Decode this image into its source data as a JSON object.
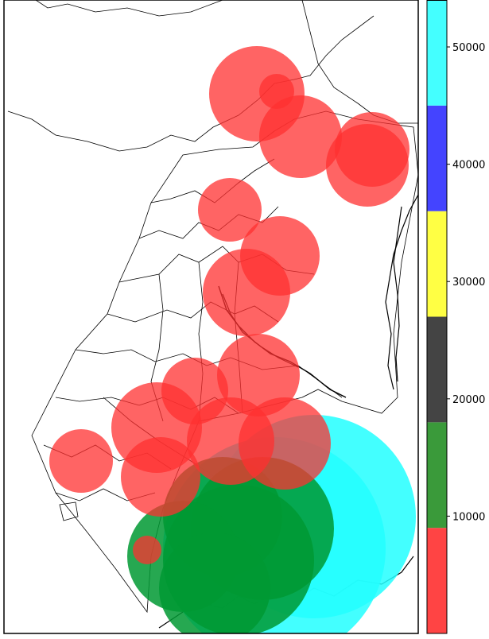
{
  "colorbar": {
    "segments": [
      {
        "color": "#ff4444",
        "range": [
          0,
          9000
        ]
      },
      {
        "color": "#3a9a3a",
        "range": [
          9000,
          18000
        ]
      },
      {
        "color": "#444444",
        "range": [
          18000,
          27000
        ]
      },
      {
        "color": "#ffff44",
        "range": [
          27000,
          36000
        ]
      },
      {
        "color": "#4444ff",
        "range": [
          36000,
          45000
        ]
      },
      {
        "color": "#44ffff",
        "range": [
          45000,
          54000
        ]
      }
    ],
    "ticks": [
      {
        "value": 10000,
        "label": "10000"
      },
      {
        "value": 20000,
        "label": "20000"
      },
      {
        "value": 30000,
        "label": "30000"
      },
      {
        "value": 40000,
        "label": "40000"
      },
      {
        "value": 50000,
        "label": "50000"
      }
    ],
    "min": 0,
    "max": 54000
  },
  "map": {
    "symbol_colors": {
      "red": "#ff3030",
      "green": "#009933",
      "cyan": "#22ffff"
    },
    "marker_categories": [
      "red",
      "red",
      "red",
      "red",
      "red",
      "red",
      "red",
      "red",
      "red",
      "red",
      "red",
      "red",
      "red",
      "red",
      "red",
      "cyan",
      "cyan",
      "green",
      "green",
      "green",
      "green",
      "green",
      "red"
    ]
  }
}
